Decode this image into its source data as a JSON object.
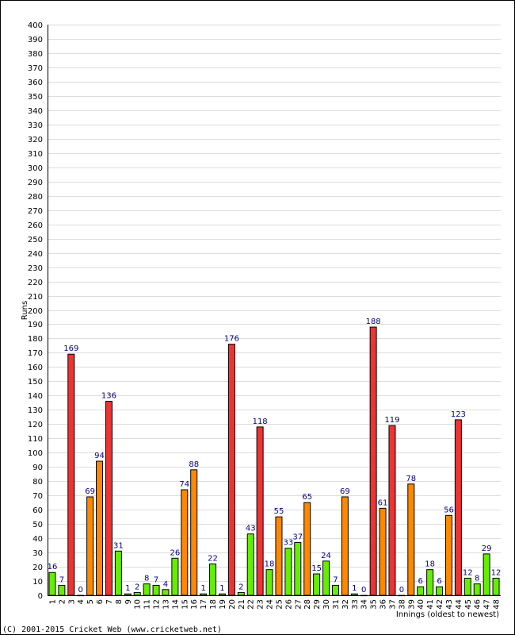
{
  "chart_data": {
    "type": "bar",
    "ylabel": "Runs",
    "xlabel": "Innings (oldest to newest)",
    "ylim": [
      0,
      400
    ],
    "ytick_step": 10,
    "grid": true,
    "categories": [
      "1",
      "2",
      "3",
      "4",
      "5",
      "6",
      "7",
      "8",
      "9",
      "10",
      "11",
      "12",
      "13",
      "14",
      "15",
      "16",
      "17",
      "18",
      "19",
      "20",
      "21",
      "22",
      "23",
      "24",
      "25",
      "26",
      "27",
      "28",
      "29",
      "30",
      "31",
      "32",
      "33",
      "34",
      "35",
      "36",
      "37",
      "38",
      "39",
      "40",
      "41",
      "42",
      "43",
      "44",
      "45",
      "46",
      "47",
      "48"
    ],
    "values": [
      16,
      7,
      169,
      0,
      69,
      94,
      136,
      31,
      1,
      2,
      8,
      7,
      4,
      26,
      74,
      88,
      1,
      22,
      1,
      176,
      2,
      43,
      118,
      18,
      55,
      33,
      37,
      65,
      15,
      24,
      7,
      69,
      1,
      0,
      188,
      61,
      119,
      0,
      78,
      6,
      18,
      6,
      56,
      123,
      12,
      8,
      29,
      12
    ],
    "colors": {
      "low": "#66ee00",
      "mid": "#ff8800",
      "high": "#ee3333"
    }
  },
  "footer": {
    "credit": "(C) 2001-2015 Cricket Web (www.cricketweb.net)"
  }
}
